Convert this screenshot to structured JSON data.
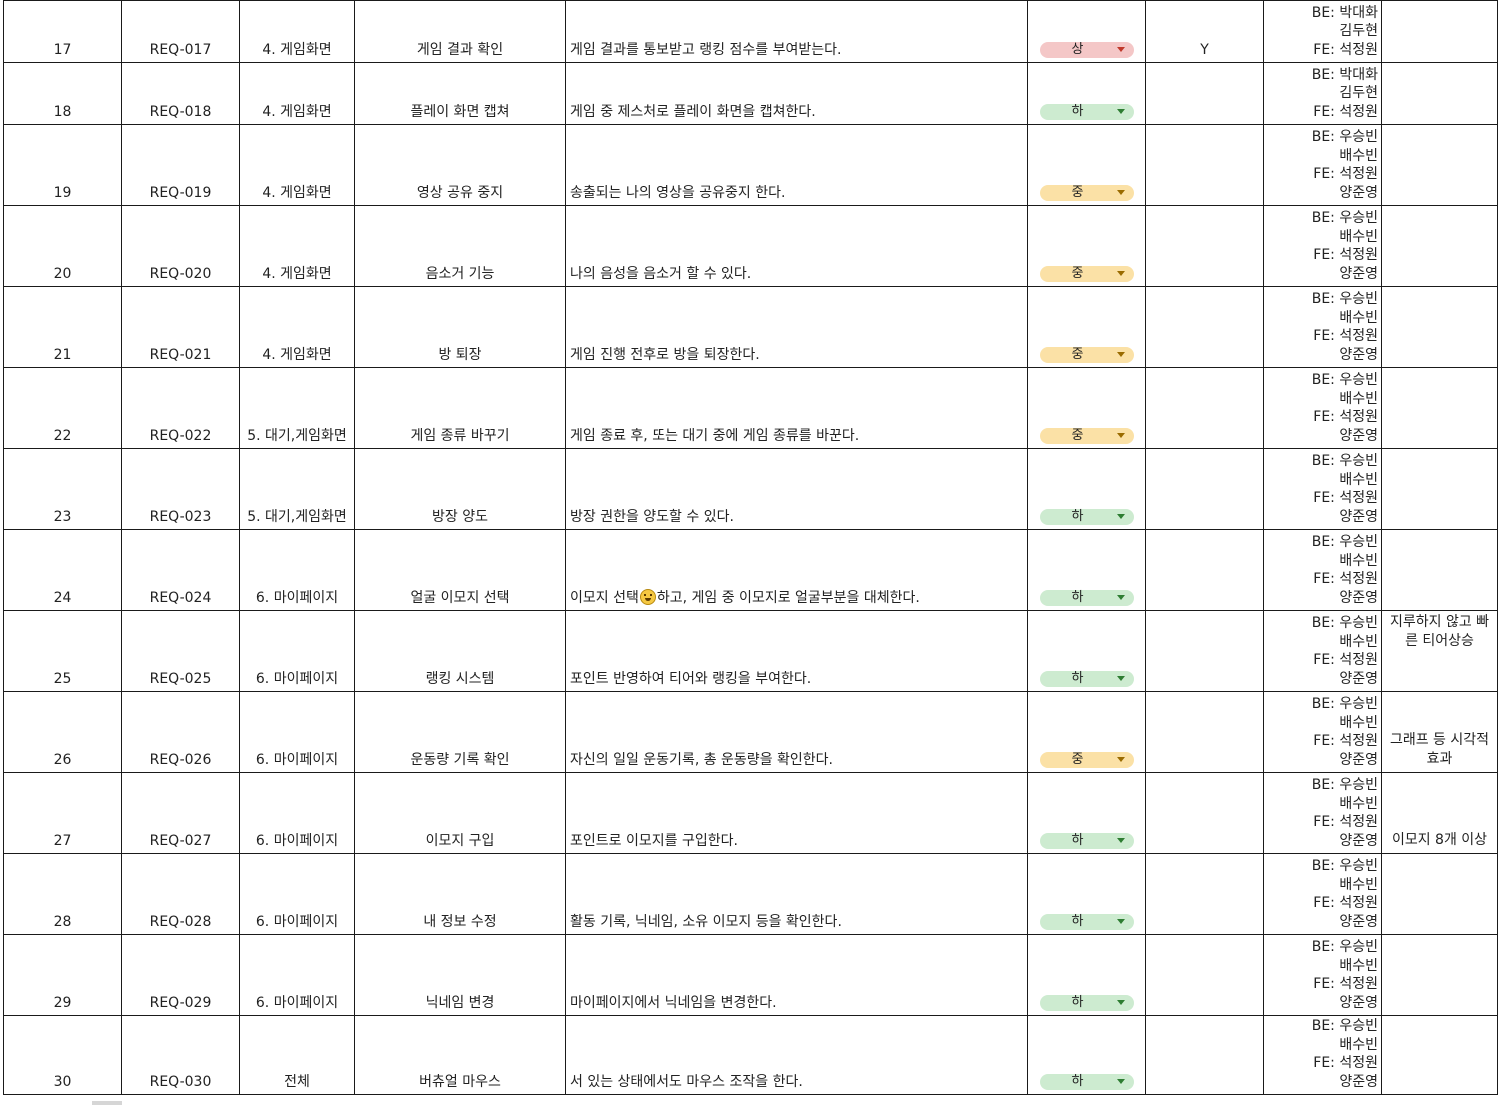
{
  "priority_styles": {
    "상": {
      "bg": "#f4c7c7",
      "arrow": "#c0392b"
    },
    "중": {
      "bg": "#fbe1a6",
      "arrow": "#9a6b00"
    },
    "하": {
      "bg": "#cdebd0",
      "arrow": "#2e7d32"
    }
  },
  "rows": [
    {
      "num": "17",
      "id": "REQ-017",
      "category": "4. 게임화면",
      "name": "게임 결과 확인",
      "desc": "게임 결과를 통보받고 랭킹 점수를 부여받는다.",
      "priority": "상",
      "flag": "Y",
      "owner": [
        "BE: 박대화",
        "김두현",
        "FE: 석정원"
      ],
      "note": ""
    },
    {
      "num": "18",
      "id": "REQ-018",
      "category": "4. 게임화면",
      "name": "플레이 화면 캡쳐",
      "desc": "게임 중 제스처로 플레이 화면을 캡쳐한다.",
      "priority": "하",
      "flag": "",
      "owner": [
        "BE: 박대화",
        "김두현",
        "FE: 석정원"
      ],
      "note": ""
    },
    {
      "num": "19",
      "id": "REQ-019",
      "category": "4. 게임화면",
      "name": "영상 공유 중지",
      "desc": "송출되는 나의 영상을 공유중지 한다.",
      "priority": "중",
      "flag": "",
      "owner": [
        "BE: 우승빈",
        "배수빈",
        "FE: 석정원",
        "양준영"
      ],
      "note": ""
    },
    {
      "num": "20",
      "id": "REQ-020",
      "category": "4. 게임화면",
      "name": "음소거 기능",
      "desc": "나의 음성을 음소거 할 수 있다.",
      "priority": "중",
      "flag": "",
      "owner": [
        "BE: 우승빈",
        "배수빈",
        "FE: 석정원",
        "양준영"
      ],
      "note": ""
    },
    {
      "num": "21",
      "id": "REQ-021",
      "category": "4. 게임화면",
      "name": "방 퇴장",
      "desc": "게임 진행 전후로 방을 퇴장한다.",
      "priority": "중",
      "flag": "",
      "owner": [
        "BE: 우승빈",
        "배수빈",
        "FE: 석정원",
        "양준영"
      ],
      "note": ""
    },
    {
      "num": "22",
      "id": "REQ-022",
      "category": "5. 대기,게임화면",
      "name": "게임 종류 바꾸기",
      "desc": "게임 종료 후, 또는 대기 중에 게임 종류를 바꾼다.",
      "priority": "중",
      "flag": "",
      "owner": [
        "BE: 우승빈",
        "배수빈",
        "FE: 석정원",
        "양준영"
      ],
      "note": ""
    },
    {
      "num": "23",
      "id": "REQ-023",
      "category": "5. 대기,게임화면",
      "name": "방장 양도",
      "desc": "방장 권한을 양도할 수 있다.",
      "priority": "하",
      "flag": "",
      "owner": [
        "BE: 우승빈",
        "배수빈",
        "FE: 석정원",
        "양준영"
      ],
      "note": ""
    },
    {
      "num": "24",
      "id": "REQ-024",
      "category": "6. 마이페이지",
      "name": "얼굴 이모지 선택",
      "desc_before": "이모지 선택",
      "desc_after": "하고, 게임 중 이모지로 얼굴부분을 대체한다.",
      "priority": "하",
      "flag": "",
      "owner": [
        "BE: 우승빈",
        "배수빈",
        "FE: 석정원",
        "양준영"
      ],
      "note": ""
    },
    {
      "num": "25",
      "id": "REQ-025",
      "category": "6. 마이페이지",
      "name": "랭킹 시스템",
      "desc": "포인트 반영하여 티어와 랭킹을 부여한다.",
      "priority": "하",
      "flag": "",
      "owner": [
        "BE: 우승빈",
        "배수빈",
        "FE: 석정원",
        "양준영"
      ],
      "note": "지루하지 않고 빠른 티어상승"
    },
    {
      "num": "26",
      "id": "REQ-026",
      "category": "6. 마이페이지",
      "name": "운동량 기록 확인",
      "desc": "자신의 일일 운동기록, 총 운동량을 확인한다.",
      "priority": "중",
      "flag": "",
      "owner": [
        "BE: 우승빈",
        "배수빈",
        "FE: 석정원",
        "양준영"
      ],
      "note": "그래프 등 시각적 효과"
    },
    {
      "num": "27",
      "id": "REQ-027",
      "category": "6. 마이페이지",
      "name": "이모지 구입",
      "desc": "포인트로 이모지를 구입한다.",
      "priority": "하",
      "flag": "",
      "owner": [
        "BE: 우승빈",
        "배수빈",
        "FE: 석정원",
        "양준영"
      ],
      "note": "이모지 8개 이상"
    },
    {
      "num": "28",
      "id": "REQ-028",
      "category": "6. 마이페이지",
      "name": "내 정보 수정",
      "desc": "활동 기록, 닉네임, 소유 이모지 등을 확인한다.",
      "priority": "하",
      "flag": "",
      "owner": [
        "BE: 우승빈",
        "배수빈",
        "FE: 석정원",
        "양준영"
      ],
      "note": ""
    },
    {
      "num": "29",
      "id": "REQ-029",
      "category": "6. 마이페이지",
      "name": "닉네임 변경",
      "desc": "마이페이지에서 닉네임을 변경한다.",
      "priority": "하",
      "flag": "",
      "owner": [
        "BE: 우승빈",
        "배수빈",
        "FE: 석정원",
        "양준영"
      ],
      "note": ""
    },
    {
      "num": "30",
      "id": "REQ-030",
      "category": "전체",
      "name": "버츄얼 마우스",
      "desc": "서 있는 상태에서도 마우스 조작을 한다.",
      "priority": "하",
      "flag": "",
      "owner": [
        "BE: 우승빈",
        "배수빈",
        "FE: 석정원",
        "양준영"
      ],
      "note": ""
    }
  ]
}
